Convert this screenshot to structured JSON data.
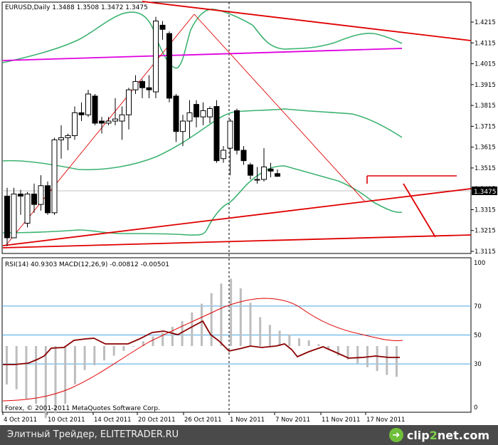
{
  "chart_data": [
    {
      "type": "candlestick",
      "title": "EURUSD,Daily  1.3488 1.3508 1.3472 1.3475",
      "symbol": "EURUSD",
      "timeframe": "Daily",
      "ohlc_header": "1.3488 1.3508 1.3472 1.3475",
      "price_ticks": [
        "1.4215",
        "1.4115",
        "1.4015",
        "1.3915",
        "1.3815",
        "1.3715",
        "1.3615",
        "1.3515",
        "1.3415",
        "1.3315",
        "1.3215",
        "1.3115"
      ],
      "current_price": "1.3475",
      "ylim": [
        1.31,
        1.426
      ],
      "dates": [
        "4 Oct 2011",
        "10 Oct 2011",
        "14 Oct 2011",
        "20 Oct 2011",
        "26 Oct 2011",
        "1 Nov 2011",
        "7 Nov 2011",
        "11 Nov 2011",
        "17 Nov 2011"
      ],
      "candles": [
        {
          "o": 1.338,
          "h": 1.342,
          "l": 1.314,
          "c": 1.318
        },
        {
          "o": 1.318,
          "h": 1.342,
          "l": 1.318,
          "c": 1.339
        },
        {
          "o": 1.339,
          "h": 1.341,
          "l": 1.329,
          "c": 1.338
        },
        {
          "o": 1.325,
          "h": 1.34,
          "l": 1.323,
          "c": 1.339
        },
        {
          "o": 1.339,
          "h": 1.344,
          "l": 1.33,
          "c": 1.334
        },
        {
          "o": 1.334,
          "h": 1.348,
          "l": 1.331,
          "c": 1.343
        },
        {
          "o": 1.343,
          "h": 1.345,
          "l": 1.329,
          "c": 1.33
        },
        {
          "o": 1.33,
          "h": 1.366,
          "l": 1.329,
          "c": 1.365
        },
        {
          "o": 1.365,
          "h": 1.372,
          "l": 1.356,
          "c": 1.366
        },
        {
          "o": 1.366,
          "h": 1.368,
          "l": 1.36,
          "c": 1.367
        },
        {
          "o": 1.367,
          "h": 1.381,
          "l": 1.365,
          "c": 1.378
        },
        {
          "o": 1.378,
          "h": 1.383,
          "l": 1.374,
          "c": 1.377
        },
        {
          "o": 1.377,
          "h": 1.389,
          "l": 1.376,
          "c": 1.387
        },
        {
          "o": 1.386,
          "h": 1.387,
          "l": 1.372,
          "c": 1.373
        },
        {
          "o": 1.374,
          "h": 1.376,
          "l": 1.368,
          "c": 1.373
        },
        {
          "o": 1.373,
          "h": 1.376,
          "l": 1.372,
          "c": 1.374
        },
        {
          "o": 1.374,
          "h": 1.385,
          "l": 1.372,
          "c": 1.375
        },
        {
          "o": 1.374,
          "h": 1.381,
          "l": 1.365,
          "c": 1.377
        },
        {
          "o": 1.377,
          "h": 1.39,
          "l": 1.37,
          "c": 1.389
        },
        {
          "o": 1.389,
          "h": 1.396,
          "l": 1.387,
          "c": 1.393
        },
        {
          "o": 1.393,
          "h": 1.394,
          "l": 1.385,
          "c": 1.39
        },
        {
          "o": 1.39,
          "h": 1.396,
          "l": 1.385,
          "c": 1.389
        },
        {
          "o": 1.388,
          "h": 1.424,
          "l": 1.385,
          "c": 1.422
        },
        {
          "o": 1.42,
          "h": 1.422,
          "l": 1.413,
          "c": 1.418
        },
        {
          "o": 1.416,
          "h": 1.417,
          "l": 1.383,
          "c": 1.385
        },
        {
          "o": 1.386,
          "h": 1.387,
          "l": 1.364,
          "c": 1.369
        },
        {
          "o": 1.369,
          "h": 1.377,
          "l": 1.362,
          "c": 1.374
        },
        {
          "o": 1.374,
          "h": 1.384,
          "l": 1.366,
          "c": 1.378
        },
        {
          "o": 1.382,
          "h": 1.384,
          "l": 1.371,
          "c": 1.376
        },
        {
          "o": 1.376,
          "h": 1.383,
          "l": 1.372,
          "c": 1.379
        },
        {
          "o": 1.376,
          "h": 1.381,
          "l": 1.373,
          "c": 1.38
        },
        {
          "o": 1.381,
          "h": 1.384,
          "l": 1.354,
          "c": 1.355
        },
        {
          "o": 1.356,
          "h": 1.362,
          "l": 1.354,
          "c": 1.36
        },
        {
          "o": 1.361,
          "h": 1.375,
          "l": 1.348,
          "c": 1.374
        },
        {
          "o": 1.379,
          "h": 1.38,
          "l": 1.358,
          "c": 1.36
        },
        {
          "o": 1.36,
          "h": 1.362,
          "l": 1.353,
          "c": 1.355
        },
        {
          "o": 1.353,
          "h": 1.354,
          "l": 1.346,
          "c": 1.348
        },
        {
          "o": 1.346,
          "h": 1.352,
          "l": 1.344,
          "c": 1.346
        },
        {
          "o": 1.346,
          "h": 1.361,
          "l": 1.345,
          "c": 1.352
        },
        {
          "o": 1.351,
          "h": 1.354,
          "l": 1.347,
          "c": 1.35
        },
        {
          "o": 1.3488,
          "h": 1.3508,
          "l": 1.3472,
          "c": 1.3475
        }
      ]
    },
    {
      "type": "line",
      "title": "RSI(14) 40.9303  MACD(12,26,9) -0.00812 -0.00501",
      "rsi_header": "RSI(14) 40.9303",
      "macd_header": "MACD(12,26,9) -0.00812 -0.00501",
      "ticks": [
        "100",
        "70",
        "50",
        "30",
        "0"
      ],
      "levels": [
        70,
        50,
        30
      ],
      "ylim": [
        0,
        100
      ]
    }
  ],
  "copyright": "Forex, © 2001-2011 MetaQuotes Software Corp.",
  "footer": {
    "site": "Элитный Трейдер, ELITETRADER.RU",
    "logo_a": "clip",
    "logo_b": "2",
    "logo_c": "net",
    "logo_d": ".com",
    "logo_glyph": "➜"
  }
}
